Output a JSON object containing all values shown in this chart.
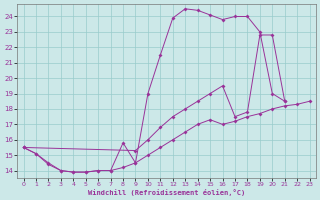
{
  "xlabel": "Windchill (Refroidissement éolien,°C)",
  "bg_color": "#cce8e8",
  "line_color": "#993399",
  "grid_color": "#99cccc",
  "xlim": [
    -0.5,
    23.5
  ],
  "ylim": [
    13.5,
    24.8
  ],
  "xticks": [
    0,
    1,
    2,
    3,
    4,
    5,
    6,
    7,
    8,
    9,
    10,
    11,
    12,
    13,
    14,
    15,
    16,
    17,
    18,
    19,
    20,
    21,
    22,
    23
  ],
  "yticks": [
    14,
    15,
    16,
    17,
    18,
    19,
    20,
    21,
    22,
    23,
    24
  ],
  "line1_x": [
    0,
    1,
    2,
    3,
    4,
    5,
    6,
    7,
    8,
    9,
    10,
    11,
    12,
    13,
    14,
    15,
    16,
    17,
    18,
    19,
    20,
    21
  ],
  "line1_y": [
    15.5,
    15.1,
    14.4,
    14.0,
    13.9,
    13.9,
    14.0,
    14.0,
    15.8,
    14.5,
    19.0,
    21.5,
    23.9,
    24.5,
    24.4,
    24.1,
    23.8,
    24.0,
    24.0,
    23.0,
    19.0,
    18.5
  ],
  "line2_x": [
    0,
    1,
    2,
    3,
    4,
    5,
    6,
    7,
    8,
    9,
    10,
    11,
    12,
    13,
    14,
    15,
    16,
    17,
    18,
    19,
    20,
    21,
    22,
    23
  ],
  "line2_y": [
    15.5,
    15.1,
    14.5,
    14.0,
    13.9,
    13.9,
    14.0,
    14.0,
    14.2,
    14.5,
    15.0,
    15.5,
    16.0,
    16.5,
    17.0,
    17.3,
    17.0,
    17.2,
    17.5,
    17.7,
    18.0,
    18.2,
    18.3,
    18.5
  ],
  "line3_x": [
    0,
    9,
    10,
    11,
    12,
    13,
    14,
    15,
    16,
    17,
    18,
    19,
    20,
    21
  ],
  "line3_y": [
    15.5,
    15.3,
    16.0,
    16.8,
    17.5,
    18.0,
    18.5,
    19.0,
    19.5,
    17.5,
    17.8,
    22.8,
    22.8,
    18.5
  ]
}
